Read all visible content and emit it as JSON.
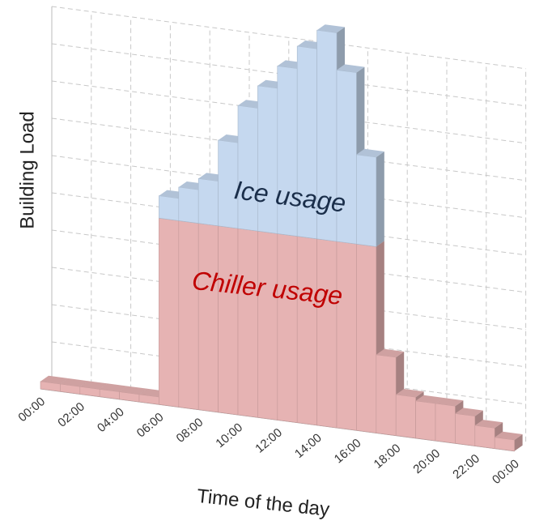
{
  "chart_data": {
    "type": "bar3d_stacked",
    "xlabel": "Time of the day",
    "ylabel": "Building Load",
    "x": [
      0,
      1,
      2,
      3,
      4,
      5,
      6,
      7,
      8,
      9,
      10,
      11,
      12,
      13,
      14,
      15,
      16,
      17,
      18,
      19,
      20,
      21,
      22,
      23
    ],
    "xlim": [
      0,
      24
    ],
    "xticks": [
      {
        "value": 0,
        "label": "00:00"
      },
      {
        "value": 2,
        "label": "02:00"
      },
      {
        "value": 4,
        "label": "04:00"
      },
      {
        "value": 6,
        "label": "06:00"
      },
      {
        "value": 8,
        "label": "08:00"
      },
      {
        "value": 10,
        "label": "10:00"
      },
      {
        "value": 12,
        "label": "12:00"
      },
      {
        "value": 14,
        "label": "14:00"
      },
      {
        "value": 16,
        "label": "16:00"
      },
      {
        "value": 18,
        "label": "18:00"
      },
      {
        "value": 20,
        "label": "20:00"
      },
      {
        "value": 22,
        "label": "22:00"
      },
      {
        "value": 24,
        "label": "00:00"
      }
    ],
    "ylim": [
      0,
      11
    ],
    "grid": true,
    "series": [
      {
        "name": "Chiller usage",
        "color": "#e6b3b3",
        "values": [
          0.2,
          0.2,
          0.2,
          0.2,
          0.2,
          0.2,
          5,
          5,
          5,
          5,
          5,
          5,
          5,
          5,
          5,
          5,
          5,
          2.1,
          1.1,
          1,
          1,
          0.8,
          0.55,
          0.3
        ]
      },
      {
        "name": "Ice usage",
        "color": "#c5d8ef",
        "values": [
          0,
          0,
          0,
          0,
          0,
          0,
          0.6,
          0.9,
          1.2,
          2.3,
          3.3,
          3.9,
          4.5,
          5.1,
          5.6,
          4.6,
          2.4,
          0,
          0,
          0,
          0,
          0,
          0,
          0
        ]
      }
    ],
    "annotations": [
      {
        "text": "Ice usage",
        "color": "#1a2e4a"
      },
      {
        "text": "Chiller usage",
        "color": "#c00000"
      }
    ]
  }
}
